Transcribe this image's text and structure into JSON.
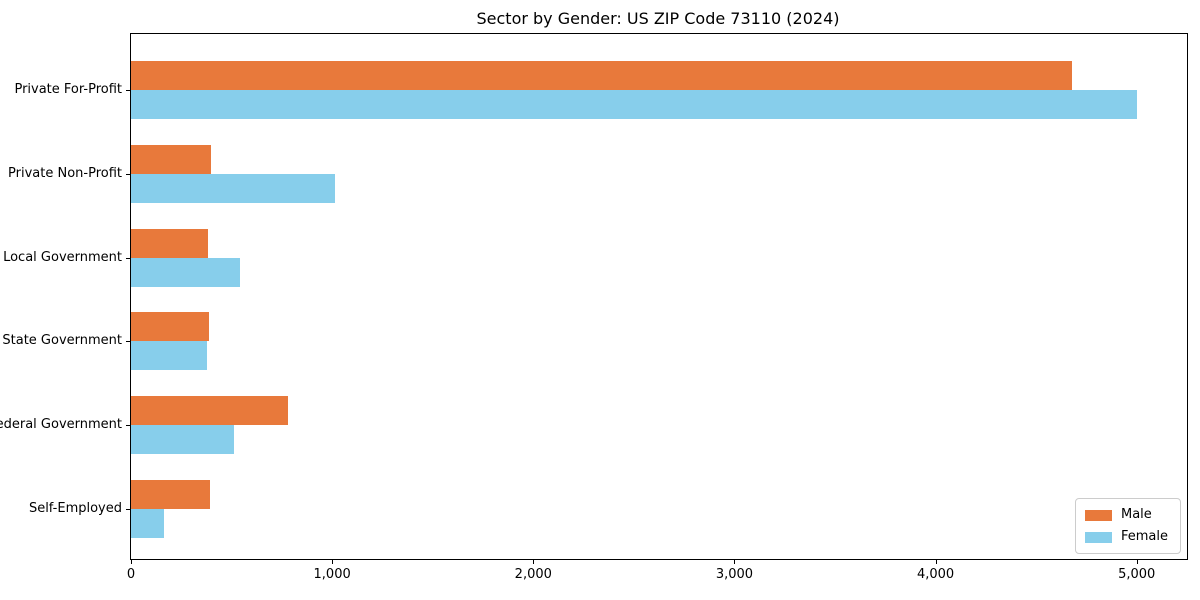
{
  "title": "Sector by Gender: US ZIP Code 73110 (2024)",
  "chart_data": {
    "type": "bar",
    "orientation": "horizontal",
    "title": "Sector by Gender: US ZIP Code 73110 (2024)",
    "categories": [
      "Private For-Profit",
      "Private Non-Profit",
      "Local Government",
      "State Government",
      "Federal Government",
      "Self-Employed"
    ],
    "series": [
      {
        "name": "Male",
        "color": "#E8793B",
        "values": [
          4680,
          400,
          385,
          390,
          780,
          395
        ]
      },
      {
        "name": "Female",
        "color": "#87CEEB",
        "values": [
          5000,
          1015,
          540,
          380,
          510,
          165
        ]
      }
    ],
    "xlabel": "",
    "ylabel": "",
    "xlim": [
      0,
      5250
    ],
    "xticks": [
      0,
      1000,
      2000,
      3000,
      4000,
      5000
    ],
    "xtick_labels": [
      "0",
      "1,000",
      "2,000",
      "3,000",
      "4,000",
      "5,000"
    ],
    "grid": false,
    "legend": {
      "position": "lower right"
    }
  },
  "colors": {
    "male": "#E8793B",
    "female": "#87CEEB",
    "axis": "#000000",
    "text": "#000000",
    "legend_border": "#cccccc",
    "background": "#ffffff"
  }
}
